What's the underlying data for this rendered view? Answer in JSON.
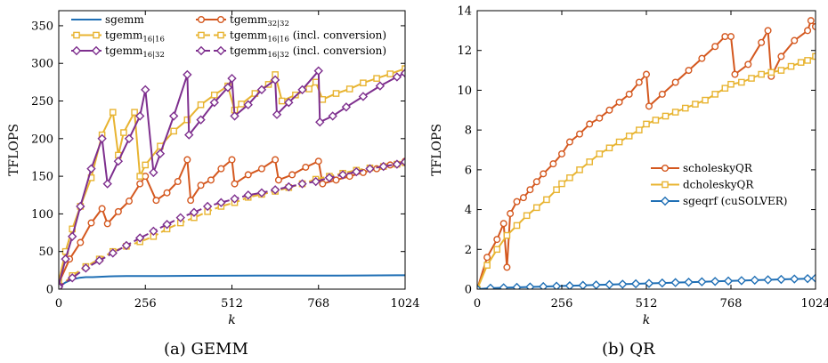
{
  "chart_data": [
    {
      "type": "line",
      "caption": "(a) GEMM",
      "xlabel": "k",
      "ylabel": "TFLOPS",
      "xlim": [
        0,
        1024
      ],
      "ylim": [
        0,
        370
      ],
      "xticks": [
        0,
        256,
        512,
        768,
        1024
      ],
      "yticks": [
        0,
        50,
        100,
        150,
        200,
        250,
        300,
        350
      ],
      "grid": false,
      "legend": "top-left, two columns",
      "series": [
        {
          "name": "sgemm",
          "base": "sgemm",
          "sub": "",
          "suffix": "",
          "color": "#1f6fb5",
          "marker": "none",
          "dash": false,
          "x": [
            0,
            20,
            40,
            60,
            80,
            100,
            150,
            200,
            300,
            400,
            500,
            600,
            700,
            800,
            900,
            1000,
            1024
          ],
          "y": [
            3,
            9,
            13,
            15,
            16,
            16,
            17,
            17.5,
            17.5,
            17.7,
            17.8,
            18,
            18,
            18,
            18.2,
            18.4,
            18.5
          ]
        },
        {
          "name": "tgemm 32|32",
          "base": "tgemm",
          "sub": "32|32",
          "suffix": "",
          "color": "#d4581f",
          "marker": "circle",
          "dash": false,
          "x": [
            0,
            32,
            64,
            96,
            128,
            144,
            176,
            208,
            240,
            256,
            288,
            320,
            352,
            380,
            390,
            420,
            450,
            480,
            512,
            520,
            560,
            600,
            640,
            650,
            690,
            730,
            768,
            780,
            820,
            860,
            900,
            940,
            980,
            1024
          ],
          "y": [
            8,
            40,
            62,
            88,
            107,
            87,
            103,
            117,
            140,
            150,
            118,
            128,
            143,
            172,
            118,
            138,
            145,
            160,
            172,
            140,
            152,
            160,
            172,
            145,
            152,
            162,
            170,
            140,
            145,
            150,
            155,
            160,
            165,
            170
          ]
        },
        {
          "name": "tgemm 16|16",
          "base": "tgemm",
          "sub": "16|16",
          "suffix": "",
          "color": "#e8b431",
          "marker": "square",
          "dash": false,
          "x": [
            0,
            20,
            40,
            64,
            96,
            128,
            160,
            176,
            192,
            224,
            240,
            256,
            300,
            340,
            380,
            420,
            460,
            500,
            520,
            540,
            580,
            620,
            640,
            660,
            700,
            740,
            760,
            780,
            820,
            860,
            900,
            940,
            980,
            1024
          ],
          "y": [
            10,
            50,
            80,
            110,
            148,
            205,
            235,
            178,
            208,
            235,
            150,
            165,
            190,
            210,
            225,
            245,
            258,
            270,
            238,
            246,
            260,
            272,
            285,
            250,
            258,
            266,
            275,
            252,
            260,
            266,
            274,
            280,
            286,
            293
          ]
        },
        {
          "name": "tgemm 16|16 (incl. conversion)",
          "base": "tgemm",
          "sub": "16|16",
          "suffix": " (incl. conversion)",
          "color": "#e8b431",
          "marker": "square",
          "dash": true,
          "x": [
            0,
            40,
            80,
            120,
            160,
            200,
            240,
            280,
            320,
            360,
            400,
            440,
            480,
            520,
            560,
            600,
            640,
            680,
            720,
            760,
            800,
            840,
            880,
            920,
            960,
            1000,
            1024
          ],
          "y": [
            2,
            18,
            30,
            40,
            50,
            57,
            63,
            70,
            80,
            88,
            95,
            103,
            110,
            115,
            122,
            126,
            130,
            135,
            140,
            146,
            150,
            154,
            158,
            161,
            163,
            166,
            168
          ]
        },
        {
          "name": "tgemm 16|32",
          "base": "tgemm",
          "sub": "16|32",
          "suffix": "",
          "color": "#7e2f8e",
          "marker": "diamond",
          "dash": false,
          "x": [
            0,
            20,
            40,
            64,
            96,
            128,
            144,
            176,
            208,
            240,
            256,
            280,
            300,
            340,
            380,
            385,
            420,
            460,
            500,
            512,
            520,
            560,
            600,
            640,
            645,
            680,
            720,
            768,
            772,
            810,
            850,
            900,
            950,
            1000,
            1024
          ],
          "y": [
            5,
            40,
            70,
            110,
            160,
            200,
            140,
            170,
            200,
            230,
            265,
            155,
            180,
            230,
            285,
            205,
            225,
            248,
            268,
            280,
            230,
            245,
            265,
            278,
            232,
            248,
            265,
            290,
            222,
            230,
            242,
            256,
            270,
            282,
            287
          ]
        },
        {
          "name": "tgemm 16|32 (incl. conversion)",
          "base": "tgemm",
          "sub": "16|32",
          "suffix": " (incl. conversion)",
          "color": "#7e2f8e",
          "marker": "diamond",
          "dash": true,
          "x": [
            0,
            40,
            80,
            120,
            160,
            200,
            240,
            280,
            320,
            360,
            400,
            440,
            480,
            520,
            560,
            600,
            640,
            680,
            720,
            760,
            800,
            840,
            880,
            920,
            960,
            1000,
            1024
          ],
          "y": [
            3,
            15,
            28,
            38,
            48,
            58,
            68,
            77,
            86,
            95,
            102,
            110,
            115,
            120,
            125,
            128,
            132,
            136,
            140,
            143,
            148,
            152,
            156,
            160,
            163,
            166,
            169
          ]
        }
      ]
    },
    {
      "type": "line",
      "caption": "(b) QR",
      "xlabel": "k",
      "ylabel": "TFLOPS",
      "xlim": [
        0,
        1024
      ],
      "ylim": [
        0,
        14
      ],
      "xticks": [
        0,
        256,
        512,
        768,
        1024
      ],
      "yticks": [
        0,
        2,
        4,
        6,
        8,
        10,
        12,
        14
      ],
      "grid": false,
      "legend": "center-right",
      "series": [
        {
          "name": "scholeskyQR",
          "base": "scholeskyQR",
          "sub": "",
          "suffix": "",
          "color": "#d4581f",
          "marker": "circle",
          "dash": false,
          "x": [
            0,
            30,
            60,
            80,
            90,
            100,
            120,
            140,
            160,
            180,
            200,
            230,
            256,
            280,
            310,
            340,
            370,
            400,
            430,
            460,
            490,
            512,
            520,
            560,
            600,
            640,
            680,
            720,
            750,
            768,
            780,
            820,
            860,
            880,
            890,
            920,
            960,
            1000,
            1010,
            1024
          ],
          "y": [
            0,
            1.6,
            2.5,
            3.3,
            1.1,
            3.8,
            4.4,
            4.6,
            5.0,
            5.4,
            5.8,
            6.3,
            6.8,
            7.4,
            7.8,
            8.3,
            8.6,
            9.0,
            9.4,
            9.8,
            10.4,
            10.8,
            9.2,
            9.8,
            10.4,
            11.0,
            11.6,
            12.2,
            12.7,
            12.7,
            10.8,
            11.3,
            12.4,
            13.0,
            10.7,
            11.7,
            12.5,
            13.0,
            13.5,
            13.2
          ]
        },
        {
          "name": "dcholeskyQR",
          "base": "dcholeskyQR",
          "sub": "",
          "suffix": "",
          "color": "#e8b431",
          "marker": "square",
          "dash": false,
          "x": [
            0,
            30,
            60,
            90,
            120,
            150,
            180,
            210,
            240,
            256,
            280,
            310,
            340,
            370,
            400,
            430,
            460,
            490,
            512,
            540,
            570,
            600,
            630,
            660,
            690,
            720,
            750,
            768,
            800,
            830,
            860,
            890,
            920,
            950,
            980,
            1000,
            1024
          ],
          "y": [
            0,
            1.2,
            2.0,
            2.7,
            3.2,
            3.7,
            4.1,
            4.5,
            5.0,
            5.3,
            5.6,
            6.0,
            6.4,
            6.8,
            7.1,
            7.4,
            7.7,
            8.0,
            8.3,
            8.5,
            8.7,
            8.9,
            9.1,
            9.3,
            9.5,
            9.8,
            10.1,
            10.3,
            10.4,
            10.6,
            10.8,
            10.9,
            11.0,
            11.2,
            11.4,
            11.5,
            11.7
          ]
        },
        {
          "name": "sgeqrf (cuSOLVER)",
          "base": "sgeqrf (cuSOLVER)",
          "sub": "",
          "suffix": "",
          "color": "#1f6fb5",
          "marker": "diamond",
          "dash": false,
          "x": [
            0,
            40,
            80,
            120,
            160,
            200,
            240,
            280,
            320,
            360,
            400,
            440,
            480,
            520,
            560,
            600,
            640,
            680,
            720,
            760,
            800,
            840,
            880,
            920,
            960,
            1000,
            1024
          ],
          "y": [
            0,
            0.05,
            0.07,
            0.09,
            0.11,
            0.13,
            0.15,
            0.17,
            0.19,
            0.21,
            0.23,
            0.25,
            0.27,
            0.29,
            0.31,
            0.33,
            0.35,
            0.37,
            0.39,
            0.41,
            0.43,
            0.45,
            0.47,
            0.49,
            0.51,
            0.53,
            0.55
          ]
        }
      ]
    }
  ]
}
